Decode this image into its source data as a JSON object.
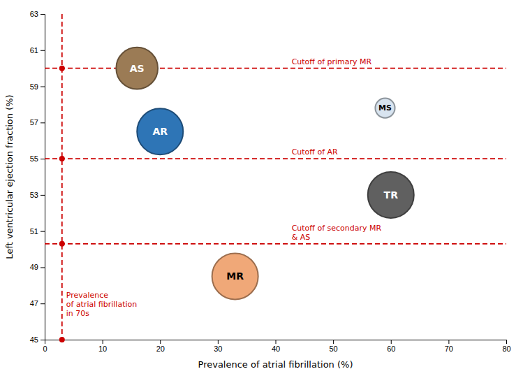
{
  "chart_data": {
    "type": "bubble",
    "xlabel": "Prevalence of atrial fibrillation (%)",
    "ylabel": "Left ventricular ejection fraction (%)",
    "xlim": [
      0,
      80
    ],
    "ylim": [
      45,
      63
    ],
    "xticks": [
      0,
      10,
      20,
      30,
      40,
      50,
      60,
      70,
      80
    ],
    "yticks": [
      45,
      47,
      49,
      51,
      53,
      55,
      57,
      59,
      61,
      63
    ],
    "labels": [
      "AS",
      "AR",
      "MR",
      "TR",
      "MS"
    ],
    "x": [
      16,
      20,
      33,
      60,
      59
    ],
    "values": [
      60.0,
      56.5,
      48.5,
      53.0,
      57.8
    ],
    "sizes": [
      1800,
      2200,
      2200,
      2200,
      400
    ],
    "colors": [
      "#9B7B55",
      "#2E75B6",
      "#F0A878",
      "#606060",
      "#D8E4F0"
    ],
    "hlines": [
      {
        "y": 60.0,
        "label": "Cutoff of primary MR",
        "color": "#CC0000"
      },
      {
        "y": 55.0,
        "label": "Cutoff of AR",
        "color": "#CC0000"
      },
      {
        "y": 50.3,
        "label": "Cutoff of secondary MR\n& AS",
        "color": "#CC0000"
      }
    ],
    "vline": {
      "x": 3,
      "label": "Prevalence\nof atrial fibrillation\nin 70s",
      "color": "#CC0000"
    },
    "dots": {
      "x": 3,
      "y": [
        45.0,
        60.0,
        55.0,
        50.3
      ],
      "color": "#CC0000"
    }
  }
}
